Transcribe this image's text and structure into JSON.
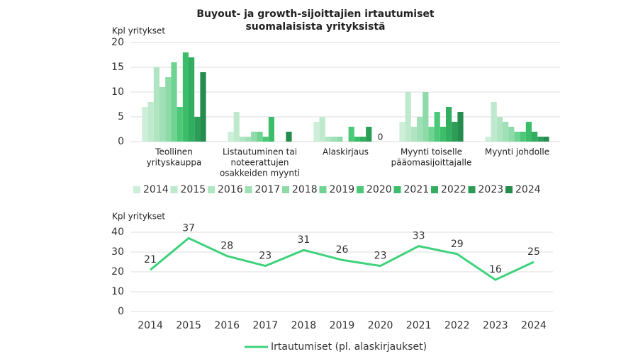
{
  "chart_data": [
    {
      "type": "bar",
      "title": [
        "Buyout- ja growth-sijoittajien irtautumiset",
        "suomalaisista yrityksistä"
      ],
      "y_label": "Kpl yritykset",
      "categories": [
        [
          "Teollinen",
          "yrityskauppa"
        ],
        [
          "Listautuminen tai",
          "noteerattujen",
          "osakkeiden myynti"
        ],
        [
          "Alaskirjaus"
        ],
        [
          "Myynti toiselle",
          "pääomasijoittajalle"
        ],
        [
          "Myynti johdolle"
        ]
      ],
      "ylim": [
        0,
        20
      ],
      "yticks": [
        0,
        5,
        10,
        15,
        20
      ],
      "grid": true,
      "series": [
        {
          "name": "2014",
          "color": "#cdeed8",
          "values": [
            7,
            2,
            4,
            4,
            1
          ]
        },
        {
          "name": "2015",
          "color": "#bfe9cd",
          "values": [
            8,
            6,
            5,
            10,
            8
          ]
        },
        {
          "name": "2016",
          "color": "#b0e5c2",
          "values": [
            15,
            1,
            1,
            3,
            5
          ]
        },
        {
          "name": "2017",
          "color": "#a0e0b6",
          "values": [
            11,
            1,
            1,
            5,
            4
          ]
        },
        {
          "name": "2018",
          "color": "#8edaa9",
          "values": [
            13,
            2,
            1,
            10,
            3
          ]
        },
        {
          "name": "2019",
          "color": "#6fd391",
          "values": [
            16,
            2,
            0,
            3,
            2
          ]
        },
        {
          "name": "2020",
          "color": "#4cc978",
          "values": [
            7,
            1,
            3,
            6,
            2
          ]
        },
        {
          "name": "2021",
          "color": "#3cbd6a",
          "values": [
            18,
            5,
            1,
            3,
            4
          ]
        },
        {
          "name": "2022",
          "color": "#33ad60",
          "values": [
            17,
            0,
            1,
            7,
            2
          ]
        },
        {
          "name": "2023",
          "color": "#2b9d56",
          "values": [
            5,
            0,
            3,
            4,
            1
          ]
        },
        {
          "name": "2024",
          "color": "#248c4c",
          "values": [
            14,
            2,
            0,
            6,
            1
          ],
          "value_labels": [
            null,
            null,
            "0",
            null,
            null
          ]
        }
      ]
    },
    {
      "type": "line",
      "y_label": "Kpl yritykset",
      "categories": [
        "2014",
        "2015",
        "2016",
        "2017",
        "2018",
        "2019",
        "2020",
        "2021",
        "2022",
        "2023",
        "2024"
      ],
      "ylim": [
        0,
        40
      ],
      "yticks": [
        0,
        10,
        20,
        30,
        40
      ],
      "grid": true,
      "series": [
        {
          "name": "Irtautumiset (pl. alaskirjaukset)",
          "color": "#3ed27c",
          "values": [
            21,
            37,
            28,
            23,
            31,
            26,
            23,
            33,
            29,
            16,
            25
          ]
        }
      ]
    }
  ]
}
